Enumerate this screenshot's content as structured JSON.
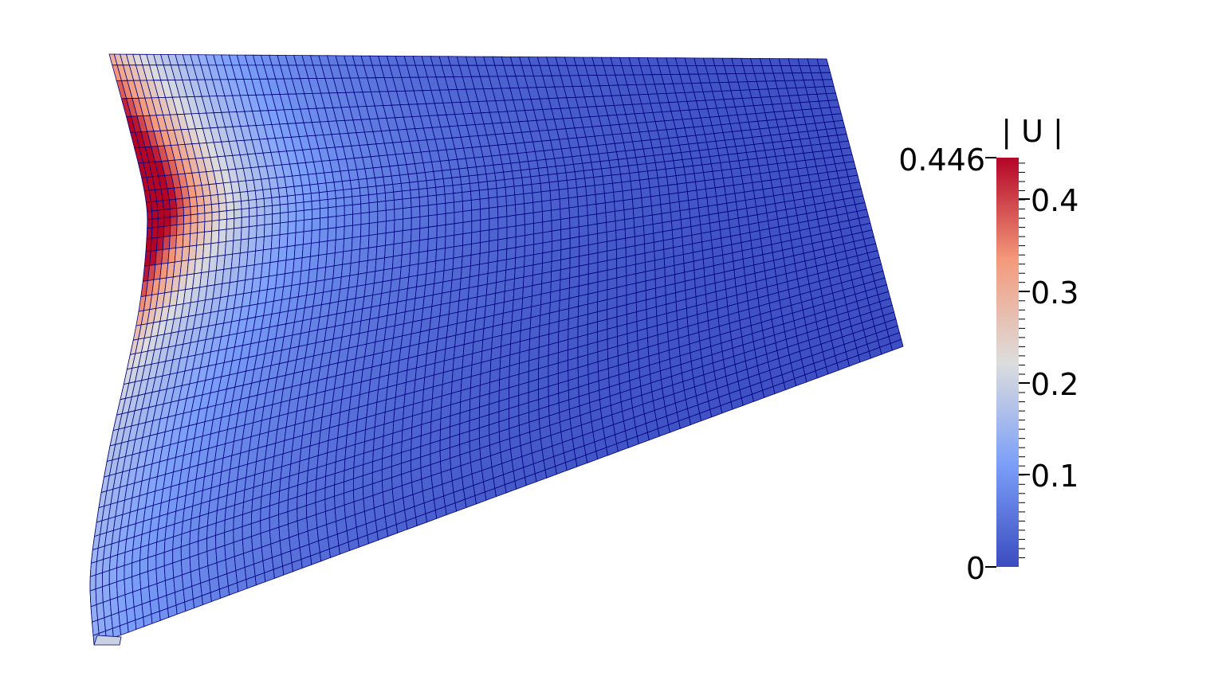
{
  "colorbar": {
    "title": "| U |",
    "max_label": "0.446",
    "min_label": "0",
    "tick_labels": [
      "0.4",
      "0.3",
      "0.2",
      "0.1"
    ],
    "range": [
      0,
      0.446
    ],
    "colormap": "cool-to-warm",
    "colors": {
      "low": "#3b4cc0",
      "mid": "#dddddd",
      "high": "#b40426"
    }
  },
  "mesh": {
    "field": "displacement magnitude",
    "max_value_location": "left edge, upper-middle",
    "edge_color": "#00007f"
  }
}
